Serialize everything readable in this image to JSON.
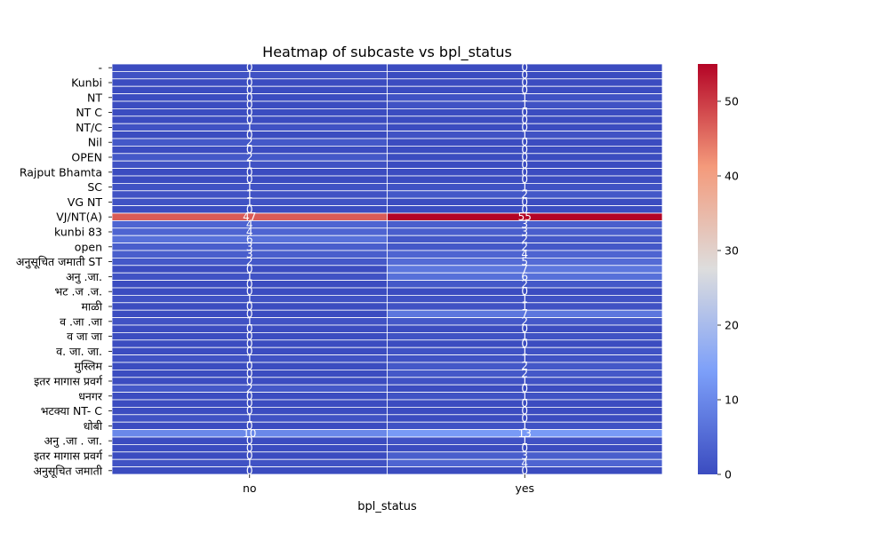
{
  "chart_data": {
    "type": "heatmap",
    "title": "Heatmap of subcaste vs bpl_status",
    "xlabel": "bpl_status",
    "ylabel": "",
    "columns": [
      "no",
      "yes"
    ],
    "row_count": 55,
    "row_tick_labels": [
      "-",
      "Kunbi",
      "NT",
      "NT C",
      "NT/C",
      "Nil",
      "OPEN",
      "Rajput Bhamta",
      "SC",
      "VG NT",
      "VJ/NT(A)",
      "kunbi 83",
      "open",
      "अनुसूचित जमाती ST",
      "अनु .जा.",
      "भट .ज .ज.",
      "माळी",
      "व .जा .जा",
      "व जा जा",
      "व. जा. जा.",
      "मुस्लिम",
      "इतर मागास प्रवर्ग",
      "धनगर",
      "भटक्या NT- C",
      "धोबी",
      "अनु .जा . जा.",
      "इतर मागास प्रवर्ग",
      "अनुसूचित जमाती"
    ],
    "values": [
      [
        0,
        0
      ],
      [
        1,
        0
      ],
      [
        0,
        0
      ],
      [
        0,
        0
      ],
      [
        0,
        1
      ],
      [
        0,
        1
      ],
      [
        0,
        0
      ],
      [
        0,
        0
      ],
      [
        1,
        0
      ],
      [
        0,
        1
      ],
      [
        2,
        0
      ],
      [
        0,
        0
      ],
      [
        2,
        0
      ],
      [
        1,
        0
      ],
      [
        0,
        0
      ],
      [
        0,
        0
      ],
      [
        1,
        1
      ],
      [
        1,
        2
      ],
      [
        1,
        0
      ],
      [
        0,
        0
      ],
      [
        47,
        55
      ],
      [
        4,
        3
      ],
      [
        4,
        3
      ],
      [
        6,
        2
      ],
      [
        3,
        2
      ],
      [
        3,
        4
      ],
      [
        2,
        5
      ],
      [
        0,
        7
      ],
      [
        1,
        6
      ],
      [
        0,
        2
      ],
      [
        0,
        0
      ],
      [
        1,
        1
      ],
      [
        0,
        1
      ],
      [
        0,
        7
      ],
      [
        1,
        2
      ],
      [
        0,
        0
      ],
      [
        0,
        1
      ],
      [
        0,
        0
      ],
      [
        0,
        1
      ],
      [
        1,
        1
      ],
      [
        0,
        2
      ],
      [
        0,
        2
      ],
      [
        0,
        1
      ],
      [
        2,
        0
      ],
      [
        0,
        1
      ],
      [
        0,
        0
      ],
      [
        0,
        0
      ],
      [
        1,
        0
      ],
      [
        0,
        1
      ],
      [
        10,
        13
      ],
      [
        0,
        1
      ],
      [
        0,
        0
      ],
      [
        0,
        3
      ],
      [
        1,
        4
      ],
      [
        0,
        0
      ]
    ],
    "colorbar": {
      "min": 0,
      "max": 55,
      "ticks": [
        0,
        10,
        20,
        30,
        40,
        50
      ],
      "colormap": "coolwarm"
    },
    "grid": false
  }
}
